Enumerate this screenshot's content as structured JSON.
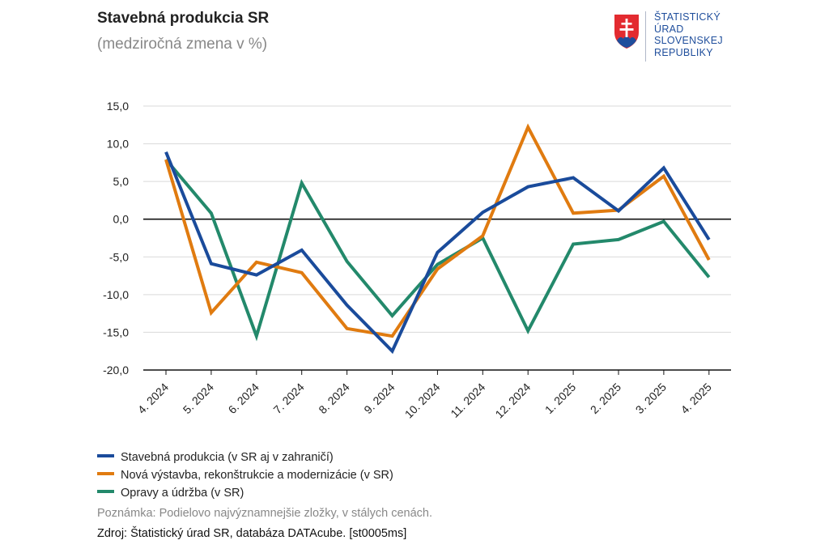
{
  "header": {
    "title": "Stavebná produkcia SR",
    "subtitle": "(medziročná zmena v %)"
  },
  "logo": {
    "lines": [
      "ŠTATISTICKÝ",
      "ÚRAD",
      "SLOVENSKEJ",
      "REPUBLIKY"
    ],
    "color": "#1f4e9c",
    "emblem_red": "#e32b30",
    "emblem_blue": "#1f4e9c"
  },
  "chart_data": {
    "type": "line",
    "title": "Stavebná produkcia SR",
    "subtitle": "(medziročná zmena v %)",
    "xlabel": "",
    "ylabel": "",
    "categories": [
      "4. 2024",
      "5. 2024",
      "6. 2024",
      "7. 2024",
      "8. 2024",
      "9. 2024",
      "10. 2024",
      "11. 2024",
      "12. 2024",
      "1. 2025",
      "2. 2025",
      "3. 2025",
      "4. 2025"
    ],
    "ylim": [
      -20,
      15
    ],
    "yticks": [
      15,
      10,
      5,
      0,
      -5,
      -10,
      -15,
      -20
    ],
    "ytick_labels": [
      "15,0",
      "10,0",
      "5,0",
      "0,0",
      "-5,0",
      "-10,0",
      "-15,0",
      "-20,0"
    ],
    "grid": true,
    "legend_position": "bottom-left",
    "series": [
      {
        "name": "Stavebná produkcia (v SR aj v zahraničí)",
        "color": "#1a4b9b",
        "values": [
          8.9,
          -5.9,
          -7.4,
          -4.1,
          -11.4,
          -17.5,
          -4.4,
          0.9,
          4.3,
          5.5,
          1.1,
          6.8,
          -2.7
        ]
      },
      {
        "name": "Nová výstavba, rekonštrukcie a modernizácie (v SR)",
        "color": "#e07b10",
        "values": [
          7.9,
          -12.4,
          -5.7,
          -7.1,
          -14.5,
          -15.5,
          -6.6,
          -2.2,
          12.2,
          0.8,
          1.2,
          5.7,
          -5.4
        ]
      },
      {
        "name": "Opravy a údržba (v SR)",
        "color": "#23896b",
        "values": [
          7.9,
          0.8,
          -15.5,
          4.8,
          -5.6,
          -12.8,
          -6.0,
          -2.5,
          -14.8,
          -3.3,
          -2.7,
          -0.3,
          -7.7
        ]
      }
    ]
  },
  "notes": {
    "footnote": "Poznámka: Podielovo najvýznamnejšie zložky, v stálych cenách.",
    "source": "Zdroj: Štatistický úrad SR, databáza DATAcube. [st0005ms]"
  }
}
